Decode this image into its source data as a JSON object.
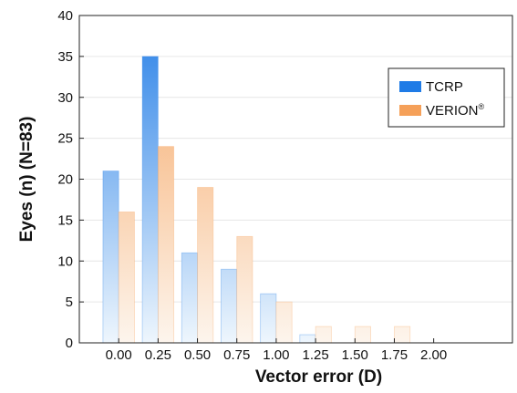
{
  "chart_data": {
    "type": "bar",
    "xlabel": "Vector error (D)",
    "ylabel": "Eyes (n) (N=83)",
    "categories": [
      "0.00",
      "0.25",
      "0.50",
      "0.75",
      "1.00",
      "1.25",
      "1.50",
      "1.75",
      "2.00"
    ],
    "x_tick_labels": [
      "0.00",
      "0.25",
      "0.50",
      "0.75",
      "1.00",
      "1.25",
      "1.50",
      "1.75",
      "2.00"
    ],
    "y_tick_labels": [
      "0",
      "5",
      "10",
      "15",
      "20",
      "25",
      "30",
      "35",
      "40"
    ],
    "ylim": [
      0,
      40
    ],
    "xlim": [
      -0.25,
      2.5
    ],
    "grid": true,
    "legend_position": "top-right",
    "series": [
      {
        "name": "TCRP",
        "label_main": "TCRP",
        "label_sup": "",
        "values": [
          21,
          35,
          11,
          9,
          6,
          1,
          0,
          0,
          0
        ],
        "color": "#1f7be6",
        "color_light": "#eef6fd"
      },
      {
        "name": "VERION®",
        "label_main": "VERION",
        "label_sup": "®",
        "values": [
          16,
          24,
          19,
          13,
          5,
          2,
          2,
          2,
          0
        ],
        "color": "#f5a059",
        "color_light": "#fdf5ed"
      }
    ]
  }
}
